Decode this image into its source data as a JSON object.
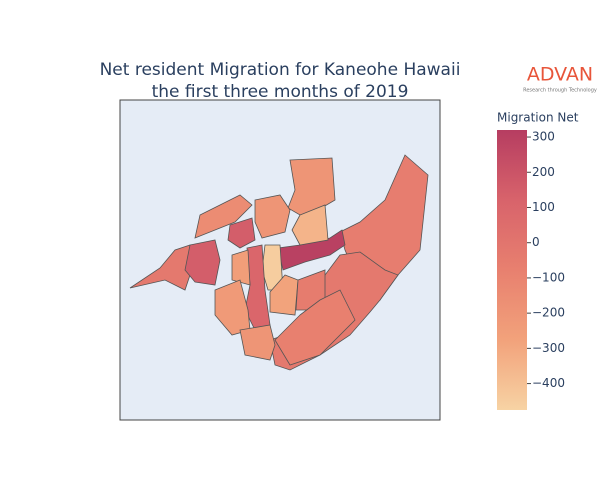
{
  "chart_data": {
    "type": "choropleth",
    "title": [
      "Net resident Migration for Kaneohe Hawaii",
      "the first three months of 2019"
    ],
    "logo": {
      "name": "ADVAN",
      "tagline": "Research through Technology"
    },
    "colorbar_title": "Migration Net",
    "values": [
      -60,
      -30,
      300,
      -200,
      -350,
      -30,
      150,
      -150,
      150,
      -450,
      100,
      -250,
      -280,
      -50,
      -230,
      -80,
      -200,
      -200
    ],
    "clim": [
      -475,
      320
    ],
    "colorscale": [
      "#f7d3a4",
      "#f2a27b",
      "#e8806f",
      "#d8636b",
      "#b63d61"
    ],
    "cticks": [
      {
        "value": -400,
        "label": "−400"
      },
      {
        "value": -300,
        "label": "−300"
      },
      {
        "value": -200,
        "label": "−200"
      },
      {
        "value": -100,
        "label": "−100"
      },
      0,
      100,
      200,
      300
    ]
  }
}
